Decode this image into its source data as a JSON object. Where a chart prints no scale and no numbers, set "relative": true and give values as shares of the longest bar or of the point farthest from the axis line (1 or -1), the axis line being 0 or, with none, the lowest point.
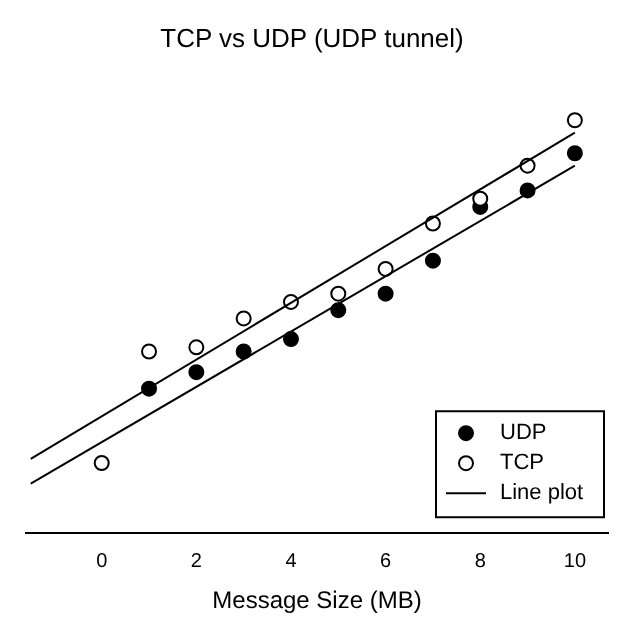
{
  "chart_data": {
    "type": "scatter",
    "title": "TCP vs UDP (UDP tunnel)",
    "xlabel": "Message Size (MB)",
    "relative": true,
    "xlim": [
      -1.6,
      10.7
    ],
    "xticks": [
      0,
      2,
      4,
      6,
      8,
      10
    ],
    "grid": false,
    "legend": "bottom right",
    "marker": "circle",
    "series": [
      {
        "name": "UDP",
        "color": "#000000",
        "x": [
          1,
          2,
          3,
          4,
          5,
          6,
          7,
          8,
          9,
          10
        ],
        "values": [
          0.35,
          0.39,
          0.44,
          0.47,
          0.54,
          0.58,
          0.66,
          0.79,
          0.83,
          0.92
        ]
      },
      {
        "name": "TCP",
        "color": "#ffffff",
        "x": [
          0,
          1,
          2,
          3,
          4,
          5,
          6,
          7,
          8,
          9,
          10
        ],
        "values": [
          0.17,
          0.44,
          0.45,
          0.52,
          0.56,
          0.58,
          0.64,
          0.75,
          0.81,
          0.89,
          1
        ]
      },
      {
        "name": "Line plot",
        "type": "line",
        "marker": "none",
        "color": "#000000",
        "x": [
          -1.5,
          10
        ],
        "values": [
          0.18,
          0.97
        ]
      },
      {
        "type": "line",
        "marker": "none",
        "color": "#000000",
        "x": [
          -1.5,
          10
        ],
        "values": [
          0.12,
          0.89
        ]
      }
    ]
  }
}
